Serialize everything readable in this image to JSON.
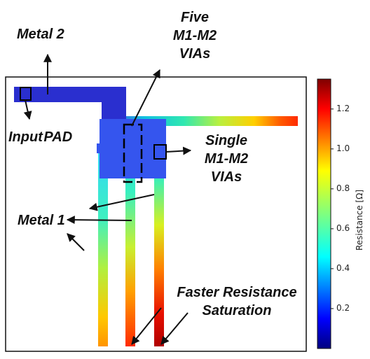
{
  "annotations": {
    "five_vias": [
      "Five",
      "M1-M2",
      "VIAs"
    ],
    "metal2": "Metal 2",
    "input_pad": "Input PAD",
    "single_vias": [
      "Single",
      "M1-M2",
      "VIAs"
    ],
    "metal1": "Metal 1",
    "faster_saturation": [
      "Faster Resistance",
      "Saturation"
    ]
  },
  "colorbar": {
    "title": "Resistance [Ω]",
    "ticks": [
      "0.2",
      "0.4",
      "0.6",
      "0.8",
      "1.0",
      "1.2"
    ],
    "range": [
      0.0,
      1.35
    ],
    "colormap": "jet"
  },
  "colors": {
    "metal2": "#2a2fcf",
    "via_block": "#3555ee",
    "frame": "#111111",
    "annotation": "#111111"
  }
}
